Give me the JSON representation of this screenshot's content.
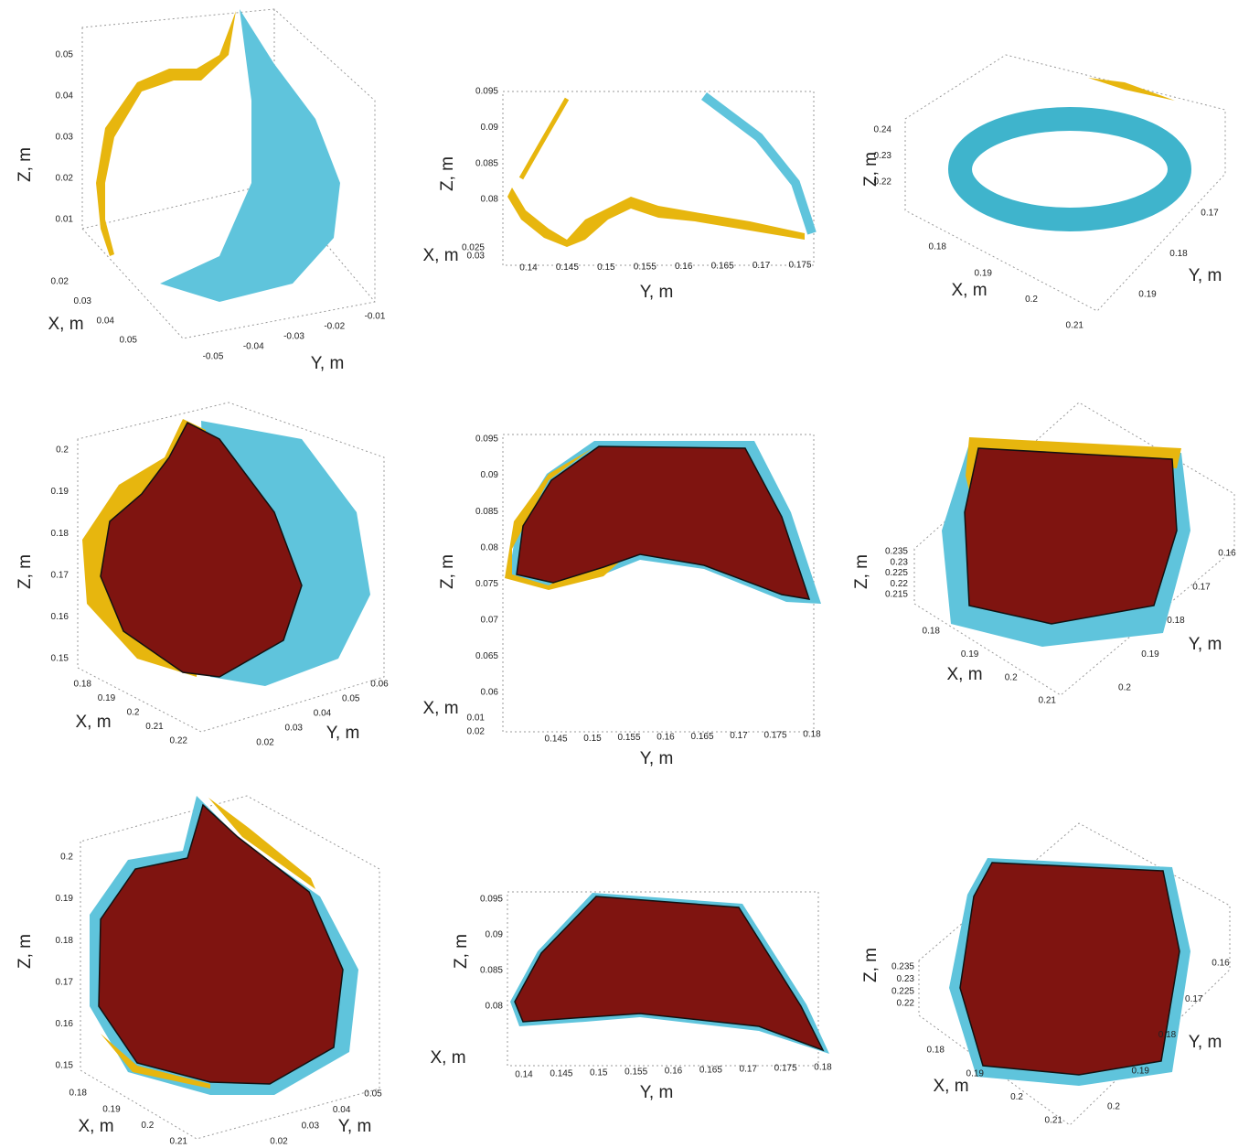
{
  "panels": [
    {
      "z_label": "Z, m",
      "x_label": "X, m",
      "y_label": "Y, m",
      "z_ticks": [
        "0.05",
        "0.04",
        "0.03",
        "0.02",
        "0.01"
      ],
      "x_ticks": [
        "0.02",
        "0.03",
        "0.04",
        "0.05"
      ],
      "y_ticks": [
        "-0.05",
        "-0.04",
        "-0.03",
        "-0.02",
        "-0.01"
      ]
    },
    {
      "z_label": "Z, m",
      "x_label": "X, m",
      "y_label": "Y, m",
      "z_ticks": [
        "0.095",
        "0.09",
        "0.085",
        "0.08"
      ],
      "x_ticks": [
        "0.025",
        "0.03"
      ],
      "y_ticks": [
        "0.14",
        "0.145",
        "0.15",
        "0.155",
        "0.16",
        "0.165",
        "0.17",
        "0.175"
      ]
    },
    {
      "z_label": "Z, m",
      "x_label": "X, m",
      "y_label": "Y, m",
      "z_ticks": [
        "0.24",
        "0.23",
        "0.22"
      ],
      "x_ticks": [
        "0.18",
        "0.19",
        "0.2",
        "0.21"
      ],
      "y_ticks": [
        "0.17",
        "0.18",
        "0.19"
      ]
    },
    {
      "z_label": "Z, m",
      "x_label": "X, m",
      "y_label": "Y, m",
      "z_ticks": [
        "0.2",
        "0.19",
        "0.18",
        "0.17",
        "0.16",
        "0.15"
      ],
      "x_ticks": [
        "0.18",
        "0.19",
        "0.2",
        "0.21",
        "0.22"
      ],
      "y_ticks": [
        "0.02",
        "0.03",
        "0.04",
        "0.05",
        "0.06"
      ]
    },
    {
      "z_label": "Z, m",
      "x_label": "X, m",
      "y_label": "Y, m",
      "z_ticks": [
        "0.095",
        "0.09",
        "0.085",
        "0.08",
        "0.075",
        "0.07",
        "0.065",
        "0.06"
      ],
      "x_ticks": [
        "0.01",
        "0.02"
      ],
      "y_ticks": [
        "0.145",
        "0.15",
        "0.155",
        "0.16",
        "0.165",
        "0.17",
        "0.175",
        "0.18"
      ]
    },
    {
      "z_label": "Z, m",
      "x_label": "X, m",
      "y_label": "Y, m",
      "z_ticks": [
        "0.235",
        "0.23",
        "0.225",
        "0.22",
        "0.215"
      ],
      "x_ticks": [
        "0.18",
        "0.19",
        "0.2",
        "0.21"
      ],
      "y_ticks": [
        "0.16",
        "0.17",
        "0.18",
        "0.19",
        "0.2"
      ]
    },
    {
      "z_label": "Z, m",
      "x_label": "X, m",
      "y_label": "Y, m",
      "z_ticks": [
        "0.2",
        "0.19",
        "0.18",
        "0.17",
        "0.16",
        "0.15"
      ],
      "x_ticks": [
        "0.18",
        "0.19",
        "0.2",
        "0.21"
      ],
      "y_ticks": [
        "0.02",
        "0.03",
        "0.04",
        "0.05"
      ]
    },
    {
      "z_label": "Z, m",
      "x_label": "X, m",
      "y_label": "Y, m",
      "z_ticks": [
        "0.095",
        "0.09",
        "0.085",
        "0.08"
      ],
      "x_ticks": [],
      "y_ticks": [
        "0.14",
        "0.145",
        "0.15",
        "0.155",
        "0.16",
        "0.165",
        "0.17",
        "0.175",
        "0.18"
      ]
    },
    {
      "z_label": "Z, m",
      "x_label": "X, m",
      "y_label": "Y, m",
      "z_ticks": [
        "0.235",
        "0.23",
        "0.225",
        "0.22"
      ],
      "x_ticks": [
        "0.18",
        "0.19",
        "0.2",
        "0.21"
      ],
      "y_ticks": [
        "0.16",
        "0.17",
        "0.18",
        "0.19",
        "0.2"
      ]
    }
  ]
}
